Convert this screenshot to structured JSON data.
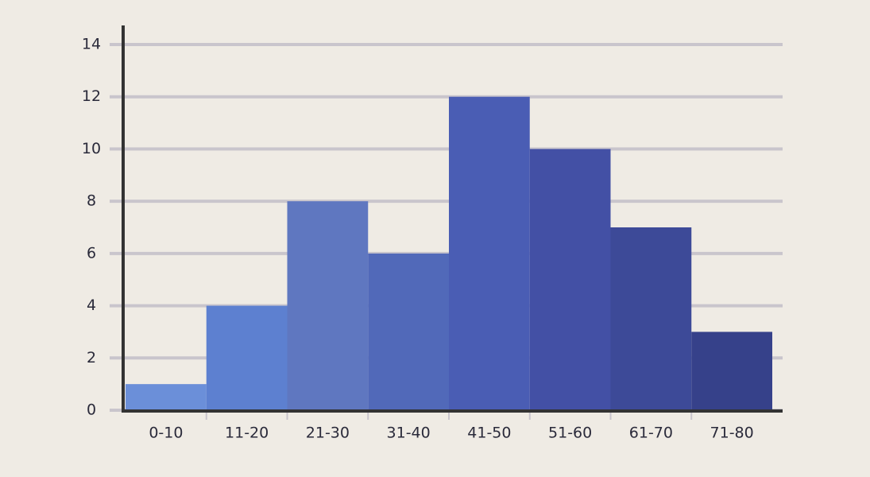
{
  "chart_data": {
    "type": "bar",
    "categories": [
      "0-10",
      "11-20",
      "21-30",
      "31-40",
      "41-50",
      "51-60",
      "61-70",
      "71-80"
    ],
    "values": [
      1,
      4,
      8,
      6,
      12,
      10,
      7,
      3
    ],
    "colors": [
      "#6b8fd9",
      "#5d80d0",
      "#5f77c0",
      "#5169b9",
      "#4a5db4",
      "#4350a5",
      "#3d4a98",
      "#36418a"
    ],
    "ylim": [
      0,
      14
    ],
    "yticks": [
      0,
      2,
      4,
      6,
      8,
      10,
      12,
      14
    ],
    "grid": true
  }
}
